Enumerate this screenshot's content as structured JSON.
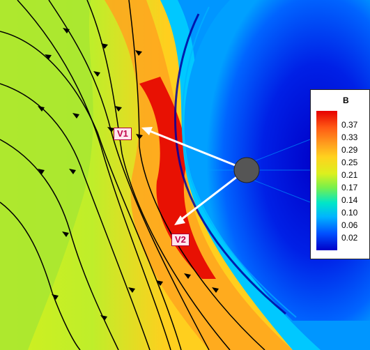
{
  "colors": {
    "scale": [
      "#0000c8",
      "#0050ff",
      "#00b4ff",
      "#00e6c8",
      "#78f04b",
      "#dcf01e",
      "#ffd21e",
      "#ffa01e",
      "#ff5a14",
      "#e60000"
    ],
    "arrow": "#ffffff",
    "planet": "#555555",
    "streamline": "#000000",
    "label_text": "#c0004a"
  },
  "legend": {
    "title": "B",
    "ticks": [
      "0.37",
      "0.33",
      "0.29",
      "0.25",
      "0.21",
      "0.17",
      "0.14",
      "0.10",
      "0.06",
      "0.02"
    ]
  },
  "vectors": [
    {
      "label": "V1"
    },
    {
      "label": "V2"
    }
  ]
}
